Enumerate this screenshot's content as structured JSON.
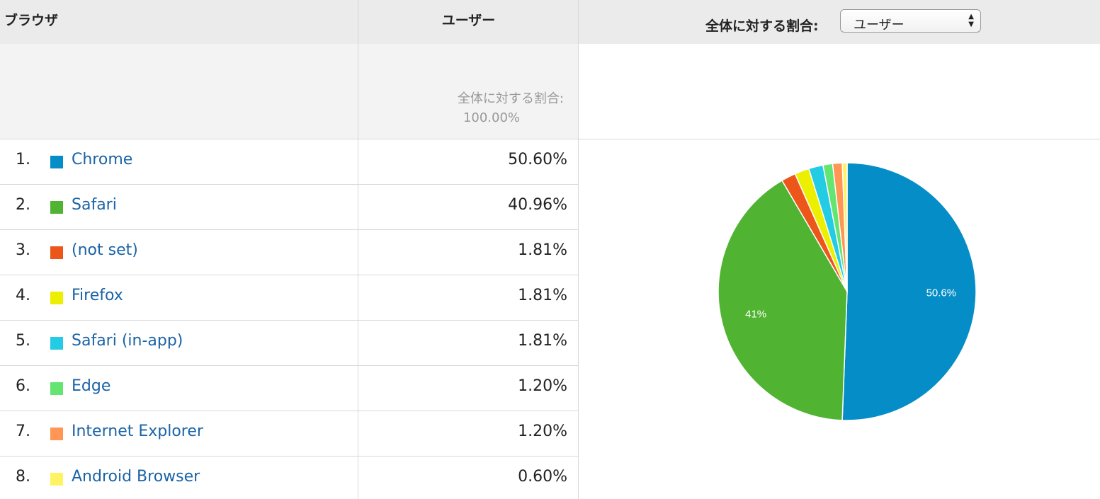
{
  "header": {
    "browser_col": "ブラウザ",
    "users_col": "ユーザー",
    "contribution_label": "全体に対する割合:",
    "contribution_select": "ユーザー"
  },
  "summary": {
    "total_label": "全体に対する割合:",
    "total_value": "100.00%"
  },
  "rows": [
    {
      "rank": "1.",
      "name": "Chrome",
      "pct": "50.60%",
      "color": "#058dc7"
    },
    {
      "rank": "2.",
      "name": "Safari",
      "pct": "40.96%",
      "color": "#50b432"
    },
    {
      "rank": "3.",
      "name": "(not set)",
      "pct": "1.81%",
      "color": "#ed561b"
    },
    {
      "rank": "4.",
      "name": "Firefox",
      "pct": "1.81%",
      "color": "#edef00"
    },
    {
      "rank": "5.",
      "name": "Safari (in-app)",
      "pct": "1.81%",
      "color": "#24cbe5"
    },
    {
      "rank": "6.",
      "name": "Edge",
      "pct": "1.20%",
      "color": "#64e572"
    },
    {
      "rank": "7.",
      "name": "Internet Explorer",
      "pct": "1.20%",
      "color": "#ff9655"
    },
    {
      "rank": "8.",
      "name": "Android Browser",
      "pct": "0.60%",
      "color": "#fff263"
    }
  ],
  "chart_data": {
    "type": "pie",
    "categories": [
      "Chrome",
      "Safari",
      "(not set)",
      "Firefox",
      "Safari (in-app)",
      "Edge",
      "Internet Explorer",
      "Android Browser"
    ],
    "values": [
      50.6,
      40.96,
      1.81,
      1.81,
      1.81,
      1.2,
      1.2,
      0.6
    ],
    "colors": [
      "#058dc7",
      "#50b432",
      "#ed561b",
      "#edef00",
      "#24cbe5",
      "#64e572",
      "#ff9655",
      "#fff263"
    ],
    "slice_labels": [
      "50.6%",
      "41%",
      "",
      "",
      "",
      "",
      "",
      ""
    ]
  }
}
